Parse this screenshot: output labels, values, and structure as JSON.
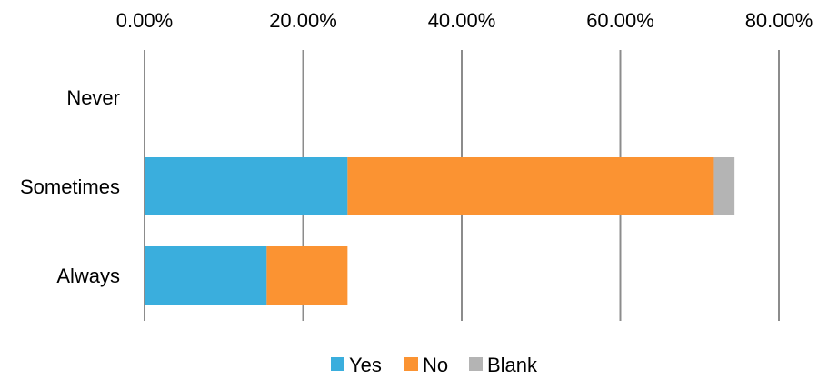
{
  "chart_data": {
    "type": "bar",
    "orientation": "horizontal",
    "stacked": true,
    "categories": [
      "Never",
      "Sometimes",
      "Always"
    ],
    "series": [
      {
        "name": "Yes",
        "color": "#3aaedd",
        "values": [
          0,
          25.6,
          15.4
        ]
      },
      {
        "name": "No",
        "color": "#fb9332",
        "values": [
          0,
          46.2,
          10.2
        ]
      },
      {
        "name": "Blank",
        "color": "#b4b4b4",
        "values": [
          0,
          2.6,
          0
        ]
      }
    ],
    "xlim": [
      0,
      80
    ],
    "x_ticks": [
      0,
      20,
      40,
      60,
      80
    ],
    "x_tick_labels": [
      "0.00%",
      "20.00%",
      "40.00%",
      "60.00%",
      "80.00%"
    ],
    "x_axis_position": "top",
    "grid": true,
    "legend_position": "bottom"
  }
}
